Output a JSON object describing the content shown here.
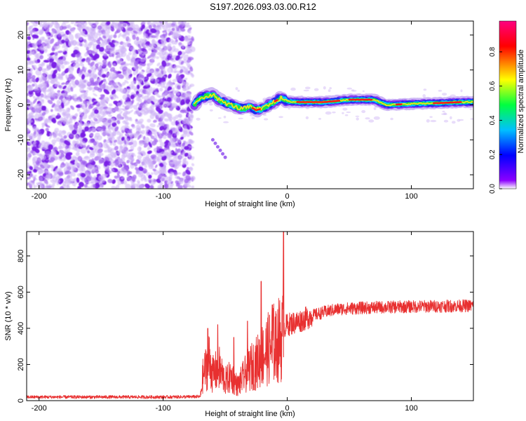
{
  "title": "S197.2026.093.03.00.R12",
  "chart_data": [
    {
      "type": "heatmap",
      "xlabel": "Height of straight line (km)",
      "ylabel": "Frequency (Hz)",
      "xlim": [
        -210,
        150
      ],
      "ylim": [
        -24,
        24
      ],
      "xticks": [
        -200,
        -100,
        0,
        100
      ],
      "yticks": [
        -20,
        -10,
        0,
        10,
        20
      ],
      "colorbar": {
        "label": "Normalized spectral amplitude",
        "range": [
          0,
          0.98
        ],
        "ticks": [
          "0.0",
          "0.2",
          "0.4",
          "0.6",
          "0.8"
        ],
        "tick_values": [
          0,
          0.2,
          0.4,
          0.6,
          0.8
        ],
        "colors": [
          "#ffffff",
          "#8b00ff",
          "#0000ff",
          "#00c0ff",
          "#00ff40",
          "#ffff00",
          "#ff0000",
          "#ff0080"
        ]
      },
      "noise_region_x": [
        -210,
        -76
      ],
      "signal_track": [
        {
          "x": -75,
          "f": 0.0
        },
        {
          "x": -70,
          "f": 2.0
        },
        {
          "x": -65,
          "f": 2.5
        },
        {
          "x": -60,
          "f": 3.0
        },
        {
          "x": -55,
          "f": 1.5
        },
        {
          "x": -50,
          "f": 0.5
        },
        {
          "x": -45,
          "f": 0.0
        },
        {
          "x": -40,
          "f": -0.8
        },
        {
          "x": -35,
          "f": -1.0
        },
        {
          "x": -30,
          "f": -0.5
        },
        {
          "x": -25,
          "f": -1.5
        },
        {
          "x": -20,
          "f": -1.0
        },
        {
          "x": -15,
          "f": 0.0
        },
        {
          "x": -10,
          "f": 1.0
        },
        {
          "x": -5,
          "f": 2.0
        },
        {
          "x": 0,
          "f": 1.0
        },
        {
          "x": 10,
          "f": 0.8
        },
        {
          "x": 30,
          "f": 0.8
        },
        {
          "x": 50,
          "f": 1.5
        },
        {
          "x": 70,
          "f": 1.5
        },
        {
          "x": 80,
          "f": 0.0
        },
        {
          "x": 100,
          "f": 0.3
        },
        {
          "x": 120,
          "f": 0.5
        },
        {
          "x": 140,
          "f": 0.8
        },
        {
          "x": 150,
          "f": 0.8
        }
      ],
      "hotspots_x": [
        -25,
        25,
        32,
        62,
        70,
        130
      ]
    },
    {
      "type": "line",
      "xlabel": "Height of straight line (km)",
      "ylabel": "SNR (10 * v/v)",
      "xlim": [
        -210,
        150
      ],
      "ylim": [
        0,
        935
      ],
      "xticks": [
        -200,
        -100,
        0,
        100
      ],
      "yticks": [
        0,
        200,
        400,
        600,
        800
      ],
      "color": "#e83030",
      "series": [
        {
          "name": "SNR",
          "x": [
            -210,
            -150,
            -100,
            -70,
            -68,
            -63,
            -60,
            -55,
            -50,
            -45,
            -40,
            -35,
            -30,
            -25,
            -20,
            -15,
            -10,
            -5,
            -3,
            0,
            10,
            20,
            30,
            40,
            50,
            70,
            100,
            150
          ],
          "y": [
            20,
            20,
            20,
            22,
            150,
            250,
            160,
            200,
            120,
            150,
            90,
            150,
            200,
            230,
            280,
            320,
            360,
            380,
            400,
            420,
            440,
            470,
            490,
            505,
            510,
            515,
            520,
            525
          ]
        }
      ],
      "spikes": [
        {
          "x": -64,
          "y": 400
        },
        {
          "x": -56,
          "y": 420
        },
        {
          "x": -43,
          "y": 350
        },
        {
          "x": -32,
          "y": 440
        },
        {
          "x": -21,
          "y": 660
        },
        {
          "x": -12,
          "y": 530
        },
        {
          "x": -9,
          "y": 480
        },
        {
          "x": -3,
          "y": 935
        }
      ]
    }
  ]
}
